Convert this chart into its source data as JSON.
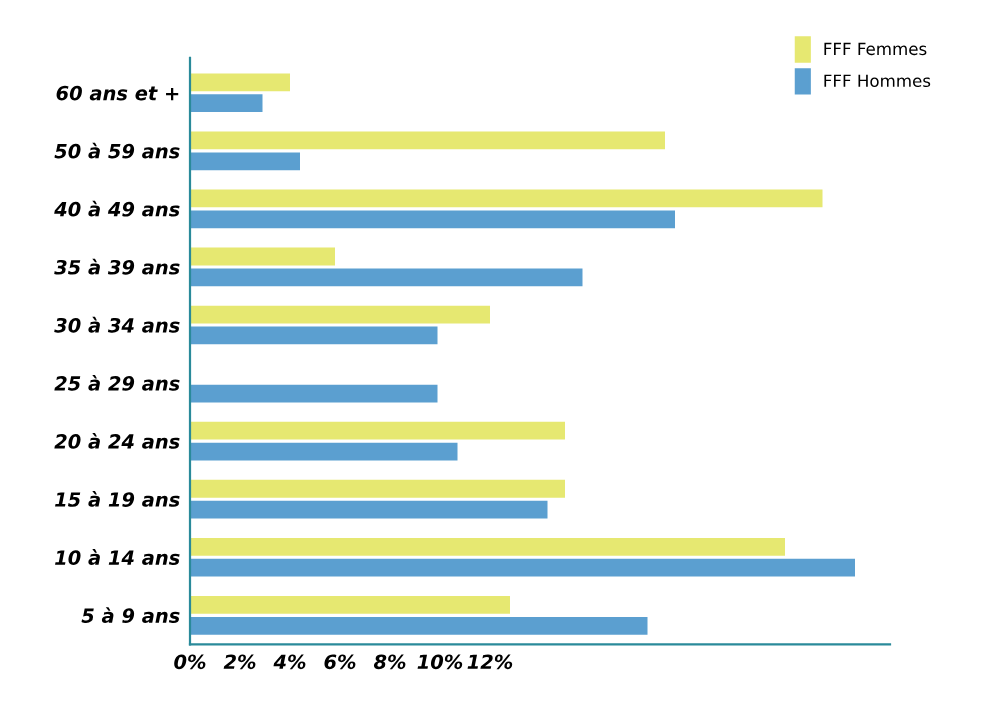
{
  "chart_data": {
    "type": "bar",
    "orientation": "horizontal",
    "categories": [
      "60 ans et +",
      "50 à 59 ans",
      "40 à 49 ans",
      "35 à 39 ans",
      "30 à 34 ans",
      "25 à 29 ans",
      "20 à 24 ans",
      "15 à 19 ans",
      "10 à 14 ans",
      "5 à 9 ans"
    ],
    "series": [
      {
        "name": "FFF Femmes",
        "color": "#e6e871",
        "values": [
          4.0,
          19.0,
          25.3,
          5.8,
          12.0,
          null,
          15.0,
          15.0,
          23.8,
          12.8
        ]
      },
      {
        "name": "FFF Hommes",
        "color": "#5b9fd0",
        "values": [
          2.9,
          4.4,
          19.4,
          15.7,
          9.9,
          9.9,
          10.7,
          14.3,
          26.6,
          18.3
        ]
      }
    ],
    "xlim": [
      0,
      28
    ],
    "xticks": [
      {
        "value": 0,
        "label": "0%"
      },
      {
        "value": 2,
        "label": "2%"
      },
      {
        "value": 4,
        "label": "4%"
      },
      {
        "value": 6,
        "label": "6%"
      },
      {
        "value": 8,
        "label": "8%"
      },
      {
        "value": 10,
        "label": "10%"
      },
      {
        "value": 12,
        "label": "12%"
      }
    ],
    "grid": false,
    "legend": "top right"
  }
}
